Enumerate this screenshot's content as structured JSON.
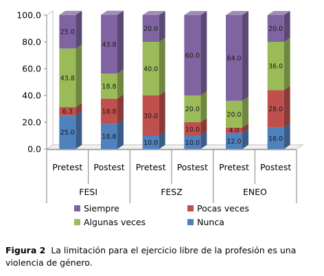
{
  "chart_data": {
    "type": "bar",
    "stacked": true,
    "style": "3d",
    "categories": [
      "Pretest",
      "Postest",
      "Pretest",
      "Postest",
      "Pretest",
      "Postest"
    ],
    "groups": [
      {
        "label": "FESI",
        "categories": [
          "Pretest",
          "Postest"
        ]
      },
      {
        "label": "FESZ",
        "categories": [
          "Pretest",
          "Postest"
        ]
      },
      {
        "label": "ENEO",
        "categories": [
          "Pretest",
          "Postest"
        ]
      }
    ],
    "series": [
      {
        "name": "Nunca",
        "color": "#4f81bd",
        "values": [
          25.0,
          18.8,
          10.0,
          10.0,
          12.0,
          16.0
        ],
        "labels": [
          "25.0",
          "18.8",
          "10.0",
          "10.0",
          "12.0",
          "16.0"
        ]
      },
      {
        "name": "Pocas veces",
        "color": "#c0504d",
        "values": [
          6.3,
          18.8,
          30.0,
          10.0,
          4.0,
          28.0
        ],
        "labels": [
          "6.3",
          "18.8",
          "30.0",
          "10.0",
          "4.0",
          "28.0"
        ]
      },
      {
        "name": "Algunas veces",
        "color": "#9bbb59",
        "values": [
          43.8,
          18.8,
          40.0,
          20.0,
          20.0,
          36.0
        ],
        "labels": [
          "43.8",
          "18.8",
          "40.0",
          "20.0",
          "20.0",
          "36.0"
        ]
      },
      {
        "name": "Siempre",
        "color": "#8064a2",
        "values": [
          25.0,
          43.8,
          20.0,
          60.0,
          64.0,
          20.0
        ],
        "labels": [
          "25.0",
          "43.8",
          "20.0",
          "60.0",
          "64.0",
          "20.0"
        ]
      }
    ],
    "ylim": [
      0,
      100
    ],
    "yticks": [
      "0.0",
      "20.0",
      "40.0",
      "60.0",
      "80.0",
      "100.0"
    ],
    "title": "",
    "xlabel": "",
    "ylabel": "",
    "grid": false,
    "legend": {
      "placement": "bottom",
      "entries": [
        "Siempre",
        "Pocas veces",
        "Algunas veces",
        "Nunca"
      ]
    }
  },
  "caption": {
    "label": "Figura 2",
    "text": "La limitación para el ejercicio libre de la profesión es una violencia de género."
  }
}
